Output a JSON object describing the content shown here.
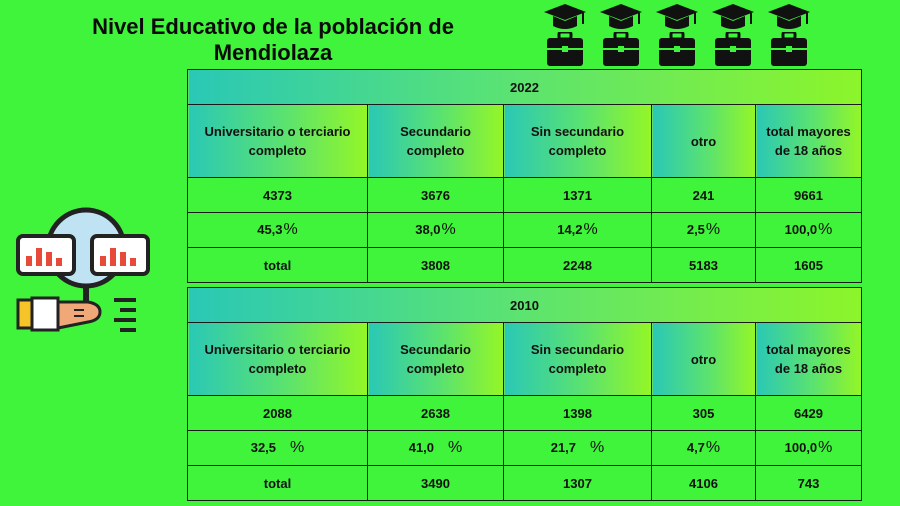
{
  "title": "Nivel Educativo de la población de Mendiolaza",
  "colors": {
    "background": "#3ff43a",
    "header_gradient_start": "#2ac8b6",
    "header_gradient_end": "#94f626"
  },
  "icons": [
    "graduation-cap-icon",
    "briefcase-icon",
    "person-analytics-icon"
  ],
  "tables": [
    {
      "year": "2022",
      "headers": [
        "Universitario o terciario completo",
        "Secundario completo",
        "Sin secundario completo",
        "otro",
        "total mayores de 18 años"
      ],
      "counts": [
        "4373",
        "3676",
        "1371",
        "241",
        "9661"
      ],
      "percents": [
        {
          "value": "45,3",
          "symbol": "%"
        },
        {
          "value": "38,0",
          "symbol": "%"
        },
        {
          "value": "14,2",
          "symbol": "%"
        },
        {
          "value": "2,5",
          "symbol": "%"
        },
        {
          "value": "100,0",
          "symbol": "%"
        }
      ],
      "totals": [
        "total",
        "3808",
        "2248",
        "5183",
        "1605"
      ]
    },
    {
      "year": "2010",
      "headers": [
        "Universitario o terciario completo",
        "Secundario completo",
        "Sin secundario completo",
        "otro",
        "total mayores de 18 años"
      ],
      "counts": [
        "2088",
        "2638",
        "1398",
        "305",
        "6429"
      ],
      "percents": [
        {
          "value": "32,5",
          "symbol": "%"
        },
        {
          "value": "41,0",
          "symbol": "%"
        },
        {
          "value": "21,7",
          "symbol": "%"
        },
        {
          "value": "4,7",
          "symbol": "%"
        },
        {
          "value": "100,0",
          "symbol": "%"
        }
      ],
      "totals": [
        "total",
        "3490",
        "1307",
        "4106",
        "743"
      ]
    }
  ]
}
